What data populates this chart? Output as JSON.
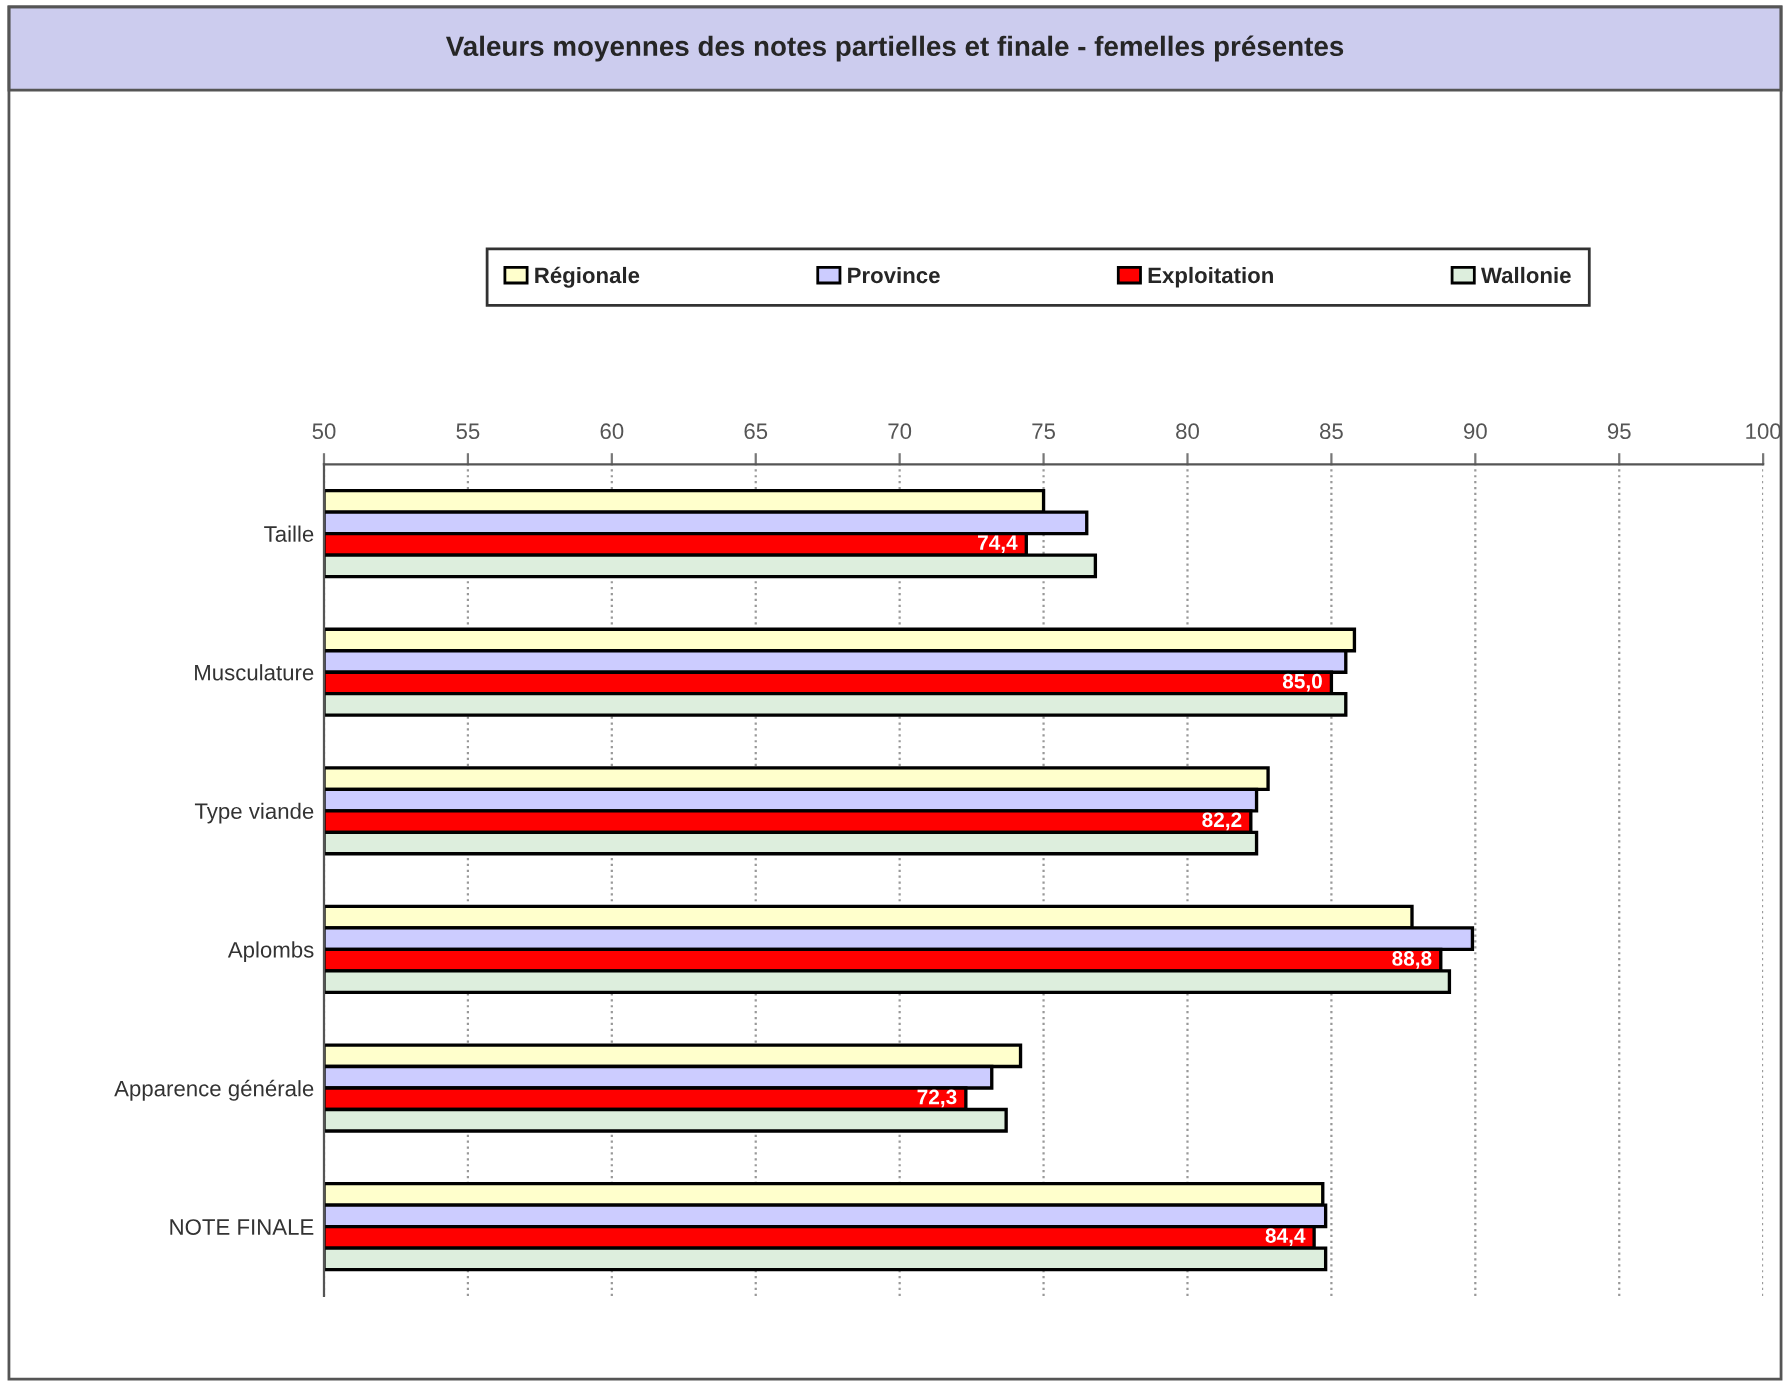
{
  "chart_data": {
    "type": "bar",
    "orientation": "horizontal",
    "title": "Valeurs moyennes des notes partielles et finale - femelles présentes",
    "categories": [
      "Taille",
      "Musculature",
      "Type viande",
      "Aplombs",
      "Apparence générale",
      "NOTE FINALE"
    ],
    "series": [
      {
        "name": "Régionale",
        "color": "#ffffcc",
        "values": [
          75.0,
          85.8,
          82.8,
          87.8,
          74.2,
          84.7
        ]
      },
      {
        "name": "Province",
        "color": "#ccccff",
        "values": [
          76.5,
          85.5,
          82.4,
          89.9,
          73.2,
          84.8
        ]
      },
      {
        "name": "Exploitation",
        "color": "#ff0000",
        "values": [
          74.4,
          85.0,
          82.2,
          88.8,
          72.3,
          84.4
        ],
        "value_labels": [
          "74,4",
          "85,0",
          "82,2",
          "88,8",
          "72,3",
          "84,4"
        ]
      },
      {
        "name": "Wallonie",
        "color": "#ddeedd",
        "values": [
          76.8,
          85.5,
          82.4,
          89.1,
          73.7,
          84.8
        ]
      }
    ],
    "xlim": [
      50,
      100
    ],
    "xticks": [
      50,
      55,
      60,
      65,
      70,
      75,
      80,
      85,
      90,
      95,
      100
    ],
    "grid": "x",
    "legend": "top"
  }
}
